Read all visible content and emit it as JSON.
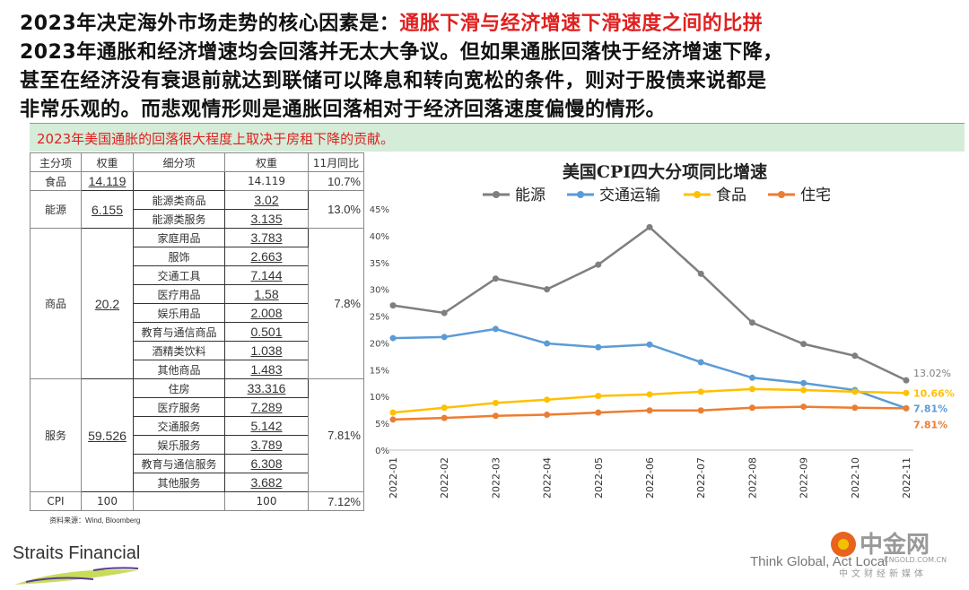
{
  "headline": {
    "line1_black": "2023年决定海外市场走势的核心因素是：",
    "line1_red": "通胀下滑与经济增速下滑速度之间的比拼",
    "line2": "2023年通胀和经济增速均会回落并无太大争议。但如果通胀回落快于经济增速下降，",
    "line3": "甚至在经济没有衰退前就达到联储可以降息和转向宽松的条件，则对于股债来说都是",
    "line4": "非常乐观的。而悲观情形则是通胀回落相对于经济回落速度偏慢的情形。"
  },
  "band_text": "2023年美国通胀的回落很大程度上取决于房租下降的贡献。",
  "table": {
    "headers": [
      "主分项",
      "权重",
      "细分项",
      "权重",
      "11月同比"
    ],
    "groups": [
      {
        "main": "食品",
        "weight": "14.119",
        "yoy": "10.7%",
        "subs": [
          [
            "",
            "14.119"
          ]
        ]
      },
      {
        "main": "能源",
        "weight": "6.155",
        "yoy": "13.0%",
        "subs": [
          [
            "能源类商品",
            "3.02"
          ],
          [
            "能源类服务",
            "3.135"
          ]
        ]
      },
      {
        "main": "商品",
        "weight": "20.2",
        "yoy": "7.8%",
        "subs": [
          [
            "家庭用品",
            "3.783"
          ],
          [
            "服饰",
            "2.663"
          ],
          [
            "交通工具",
            "7.144"
          ],
          [
            "医疗用品",
            "1.58"
          ],
          [
            "娱乐用品",
            "2.008"
          ],
          [
            "教育与通信商品",
            "0.501"
          ],
          [
            "酒精类饮料",
            "1.038"
          ],
          [
            "其他商品",
            "1.483"
          ]
        ]
      },
      {
        "main": "服务",
        "weight": "59.526",
        "yoy": "7.81%",
        "subs": [
          [
            "住房",
            "33.316"
          ],
          [
            "医疗服务",
            "7.289"
          ],
          [
            "交通服务",
            "5.142"
          ],
          [
            "娱乐服务",
            "3.789"
          ],
          [
            "教育与通信服务",
            "6.308"
          ],
          [
            "其他服务",
            "3.682"
          ]
        ]
      },
      {
        "main": "CPI",
        "weight": "100",
        "yoy": "7.12%",
        "subs": [
          [
            "",
            "100"
          ]
        ]
      }
    ]
  },
  "source": "资料来源：Wind, Bloomberg",
  "chart_data": {
    "type": "line",
    "title": "美国CPI四大分项同比增速",
    "ylim": [
      0,
      45
    ],
    "yticks": [
      "0%",
      "5%",
      "10%",
      "15%",
      "20%",
      "25%",
      "30%",
      "35%",
      "40%",
      "45%"
    ],
    "ytick_values": [
      0,
      5,
      10,
      15,
      20,
      25,
      30,
      35,
      40,
      45
    ],
    "x": [
      "2022-01",
      "2022-02",
      "2022-03",
      "2022-04",
      "2022-05",
      "2022-06",
      "2022-07",
      "2022-08",
      "2022-09",
      "2022-10",
      "2022-11"
    ],
    "series": [
      {
        "name": "能源",
        "color": "#7f7f7f",
        "values": [
          27.0,
          25.6,
          32.0,
          30.0,
          34.6,
          41.6,
          32.9,
          23.8,
          19.8,
          17.6,
          13.02
        ],
        "end_label": "13.02%"
      },
      {
        "name": "交通运输",
        "color": "#5b9bd5",
        "values": [
          20.9,
          21.1,
          22.6,
          19.9,
          19.2,
          19.7,
          16.4,
          13.5,
          12.5,
          11.2,
          7.81
        ],
        "end_label": "7.81%"
      },
      {
        "name": "食品",
        "color": "#ffc000",
        "values": [
          7.0,
          7.9,
          8.8,
          9.4,
          10.1,
          10.4,
          10.9,
          11.4,
          11.2,
          10.9,
          10.66
        ],
        "end_label": "10.66%"
      },
      {
        "name": "住宅",
        "color": "#ed7d31",
        "values": [
          5.7,
          6.0,
          6.4,
          6.6,
          7.0,
          7.4,
          7.4,
          7.9,
          8.1,
          7.9,
          7.81
        ],
        "end_label": "7.81%"
      }
    ]
  },
  "footer": {
    "logo": "Straits Financial",
    "tagline": "Think Global, Act Local",
    "watermark": "中金网",
    "watermark_sub": "中文财经新媒体",
    "watermark_url": "CNGOLD.COM.CN"
  }
}
